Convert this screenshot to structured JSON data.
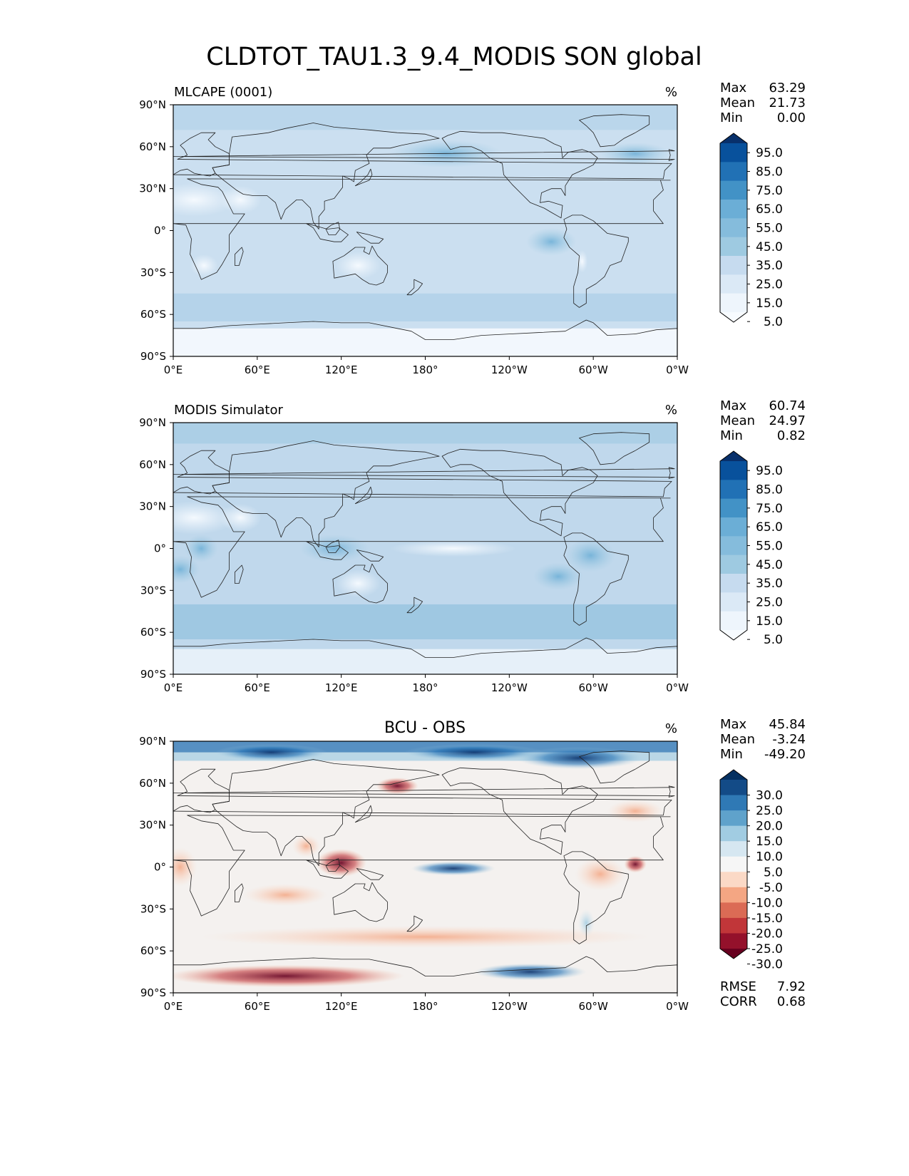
{
  "title": "CLDTOT_TAU1.3_9.4_MODIS SON global",
  "x_ticks": [
    "0°E",
    "60°E",
    "120°E",
    "180°",
    "120°W",
    "60°W",
    "0°W"
  ],
  "y_ticks": [
    "90°N",
    "60°N",
    "30°N",
    "0°",
    "30°S",
    "60°S",
    "90°S"
  ],
  "panels": [
    {
      "id": "model",
      "left_title": "MLCAPE (0001)",
      "center_title": "",
      "units": "%",
      "stats": [
        {
          "label": "Max",
          "value": "63.29"
        },
        {
          "label": "Mean",
          "value": "21.73"
        },
        {
          "label": "Min",
          "value": "0.00"
        }
      ],
      "colormap": "Blues",
      "colorbar_ticks": [
        "95.0",
        "85.0",
        "75.0",
        "65.0",
        "55.0",
        "45.0",
        "35.0",
        "25.0",
        "15.0",
        "5.0"
      ],
      "colorbar_colors": [
        "#08306b",
        "#08519c",
        "#2171b5",
        "#4292c6",
        "#6baed6",
        "#85bcdc",
        "#9ecae1",
        "#c6dbef",
        "#dbe9f6",
        "#eef5fc",
        "#f7fbff"
      ],
      "footer_stats": []
    },
    {
      "id": "obs",
      "left_title": "MODIS Simulator",
      "center_title": "",
      "units": "%",
      "stats": [
        {
          "label": "Max",
          "value": "60.74"
        },
        {
          "label": "Mean",
          "value": "24.97"
        },
        {
          "label": "Min",
          "value": "0.82"
        }
      ],
      "colormap": "Blues",
      "colorbar_ticks": [
        "95.0",
        "85.0",
        "75.0",
        "65.0",
        "55.0",
        "45.0",
        "35.0",
        "25.0",
        "15.0",
        "5.0"
      ],
      "colorbar_colors": [
        "#08306b",
        "#08519c",
        "#2171b5",
        "#4292c6",
        "#6baed6",
        "#85bcdc",
        "#9ecae1",
        "#c6dbef",
        "#dbe9f6",
        "#eef5fc",
        "#f7fbff"
      ],
      "footer_stats": []
    },
    {
      "id": "diff",
      "left_title": "",
      "center_title": "BCU - OBS",
      "units": "%",
      "stats": [
        {
          "label": "Max",
          "value": "45.84"
        },
        {
          "label": "Mean",
          "value": "-3.24"
        },
        {
          "label": "Min",
          "value": "-49.20"
        }
      ],
      "colormap": "RdBu",
      "colorbar_ticks": [
        "30.0",
        "25.0",
        "20.0",
        "15.0",
        "10.0",
        "5.0",
        "-5.0",
        "-10.0",
        "-15.0",
        "-20.0",
        "-25.0",
        "-30.0"
      ],
      "colorbar_colors": [
        "#053061",
        "#134b87",
        "#2f79b5",
        "#5fa2cb",
        "#a1cce2",
        "#d6e7f1",
        "#f6f6f6",
        "#fbd9c6",
        "#f4a683",
        "#db6b55",
        "#c13639",
        "#94112b",
        "#67001f"
      ],
      "footer_stats": [
        {
          "label": "RMSE",
          "value": "7.92"
        },
        {
          "label": "CORR",
          "value": "0.68"
        }
      ]
    }
  ]
}
